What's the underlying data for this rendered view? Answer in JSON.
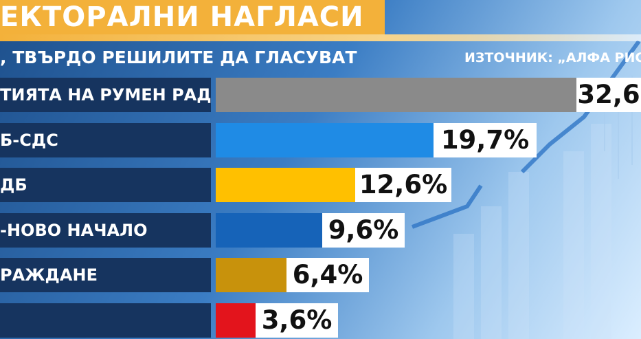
{
  "header": {
    "title": "ЕКТОРАЛНИ НАГЛАСИ",
    "subtitle": ", ТВЪРДО РЕШИЛИТЕ ДА ГЛАСУВАТ",
    "source": "ИЗТОЧНИК: „АЛФА РИСТ"
  },
  "colors": {
    "title_band": "#f3b13a",
    "label_bg": "#16345f"
  },
  "chart_data": {
    "type": "bar",
    "orientation": "horizontal",
    "categories": [
      "ТИЯТА НА РУМЕН РАДЕВ",
      "Б-СДС",
      "ДБ",
      "-НОВО НАЧАЛО",
      "РАЖДАНЕ",
      ""
    ],
    "values": [
      32.6,
      19.7,
      12.6,
      9.6,
      6.4,
      3.6
    ],
    "value_labels": [
      "32,6",
      "19,7%",
      "12,6%",
      "9,6%",
      "6,4%",
      "3,6%"
    ],
    "bar_colors": [
      "#8a8a8a",
      "#1f8be5",
      "#ffc000",
      "#1663b8",
      "#c8920c",
      "#e3141c"
    ],
    "unit": "%",
    "grid": false,
    "legend": "none"
  }
}
